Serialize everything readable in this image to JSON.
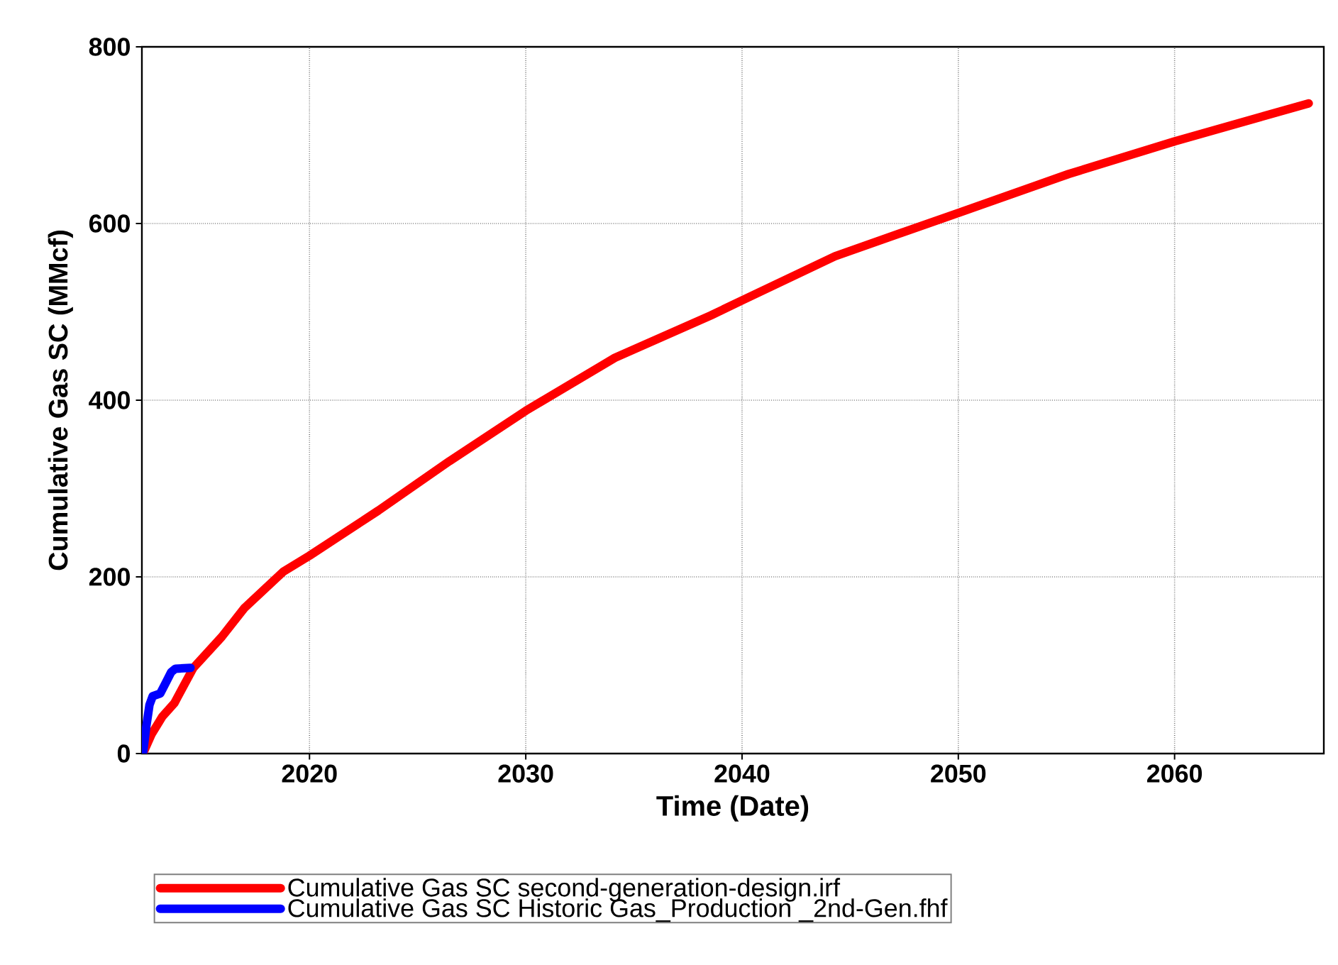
{
  "chart_data": {
    "type": "line",
    "xlabel": "Time (Date)",
    "ylabel": "Cumulative Gas SC (MMcf)",
    "xlim": [
      2012.25,
      2066.9
    ],
    "ylim": [
      0,
      800
    ],
    "xticks": [
      2020,
      2030,
      2040,
      2050,
      2060
    ],
    "yticks": [
      0,
      200,
      400,
      600,
      800
    ],
    "grid": true,
    "legend": "bottom",
    "marker": "none",
    "line_style": "solid",
    "series": [
      {
        "name": "Cumulative Gas SC second-generation-design.irf",
        "color": "#ff0000",
        "x": [
          2012.3,
          2012.7,
          2013.2,
          2013.75,
          2014.63,
          2015.94,
          2017.0,
          2018.79,
          2020.0,
          2023.18,
          2026.47,
          2030.0,
          2034.12,
          2038.56,
          2040.0,
          2044.3,
          2050.0,
          2055.1,
          2060.0,
          2066.2
        ],
        "values": [
          0,
          22,
          42,
          57,
          97,
          132,
          165,
          206,
          224,
          275,
          331,
          388,
          448,
          496,
          513,
          563,
          612,
          656,
          693,
          736
        ]
      },
      {
        "name": "Cumulative Gas SC Historic Gas_Production _2nd-Gen.fhf",
        "color": "#0000ff",
        "x": [
          2012.3,
          2012.45,
          2012.6,
          2012.75,
          2013.1,
          2013.35,
          2013.6,
          2013.8,
          2014.5
        ],
        "values": [
          0,
          30,
          55,
          65,
          68,
          80,
          92,
          96,
          97
        ]
      }
    ]
  }
}
